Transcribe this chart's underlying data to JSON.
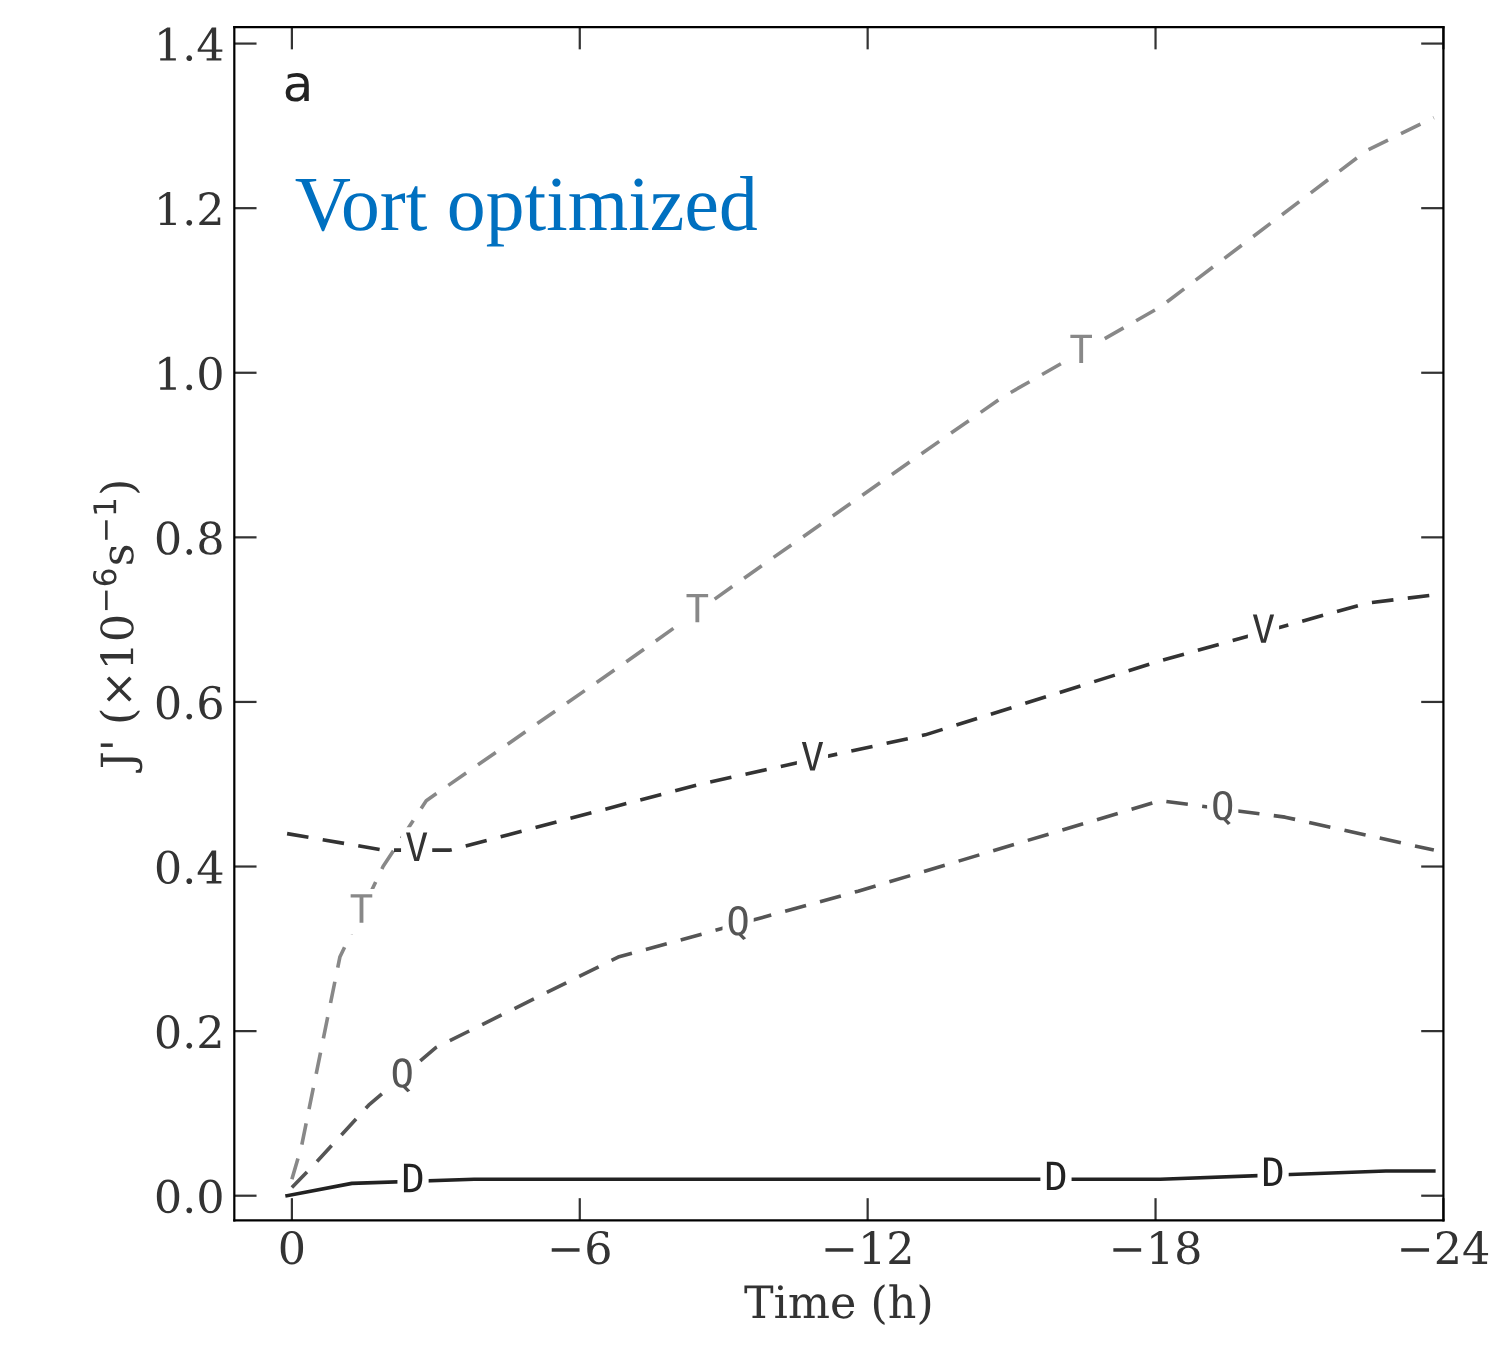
{
  "chart_data": {
    "type": "line",
    "xlabel": "Time (h)",
    "ylabel": "J' (×10$^{−6}$s$^{−1}$)",
    "annotations": [
      "a",
      "Vort optimized"
    ],
    "xlim": [
      1.2,
      -24
    ],
    "ylim": [
      -0.03,
      1.42
    ],
    "xticks": [
      0,
      {
        "value": -6,
        "label": "−6"
      },
      {
        "value": -12,
        "label": "−12"
      },
      {
        "value": -18,
        "label": "−18"
      },
      {
        "value": -24,
        "label": "−24"
      }
    ],
    "yticks": [
      {
        "value": 0,
        "label": "0.0"
      },
      0.2,
      0.4,
      0.6,
      0.8,
      {
        "value": 1,
        "label": "1.0"
      },
      1.2,
      1.4
    ],
    "grid": false,
    "legend": false,
    "series": [
      {
        "name": "T",
        "color": "#888888",
        "line_style": "dashed",
        "x": [
          0,
          -0.2,
          -1.0,
          -1.9,
          -2.8,
          -7.0,
          -9.9,
          -14.8,
          -18.1,
          -22.4,
          -23.8
        ],
        "values": [
          0.02,
          0.06,
          0.29,
          0.4,
          0.48,
          0.65,
          0.77,
          0.97,
          1.08,
          1.27,
          1.31
        ]
      },
      {
        "name": "V",
        "color": "#333333",
        "line_style": "dashed",
        "x": [
          0.1,
          -1.9,
          -3.3,
          -8.5,
          -13.2,
          -18.1,
          -22.4,
          -23.8
        ],
        "values": [
          0.44,
          0.42,
          0.42,
          0.5,
          0.56,
          0.65,
          0.72,
          0.73
        ]
      },
      {
        "name": "Q",
        "color": "#555555",
        "line_style": "dashed",
        "x": [
          0,
          -0.5,
          -1.6,
          -3,
          -6.8,
          -11.8,
          -18.1,
          -20.7,
          -23.8
        ],
        "values": [
          0.01,
          0.04,
          0.11,
          0.18,
          0.29,
          0.37,
          0.48,
          0.46,
          0.42
        ]
      },
      {
        "name": "D",
        "color": "#222222",
        "line_style": "solid",
        "x": [
          0.1,
          -1.25,
          -3.8,
          -13.75,
          -18.1,
          -22.8,
          -23.8
        ],
        "values": [
          0.0,
          0.015,
          0.02,
          0.02,
          0.02,
          0.03,
          0.03
        ]
      }
    ]
  }
}
